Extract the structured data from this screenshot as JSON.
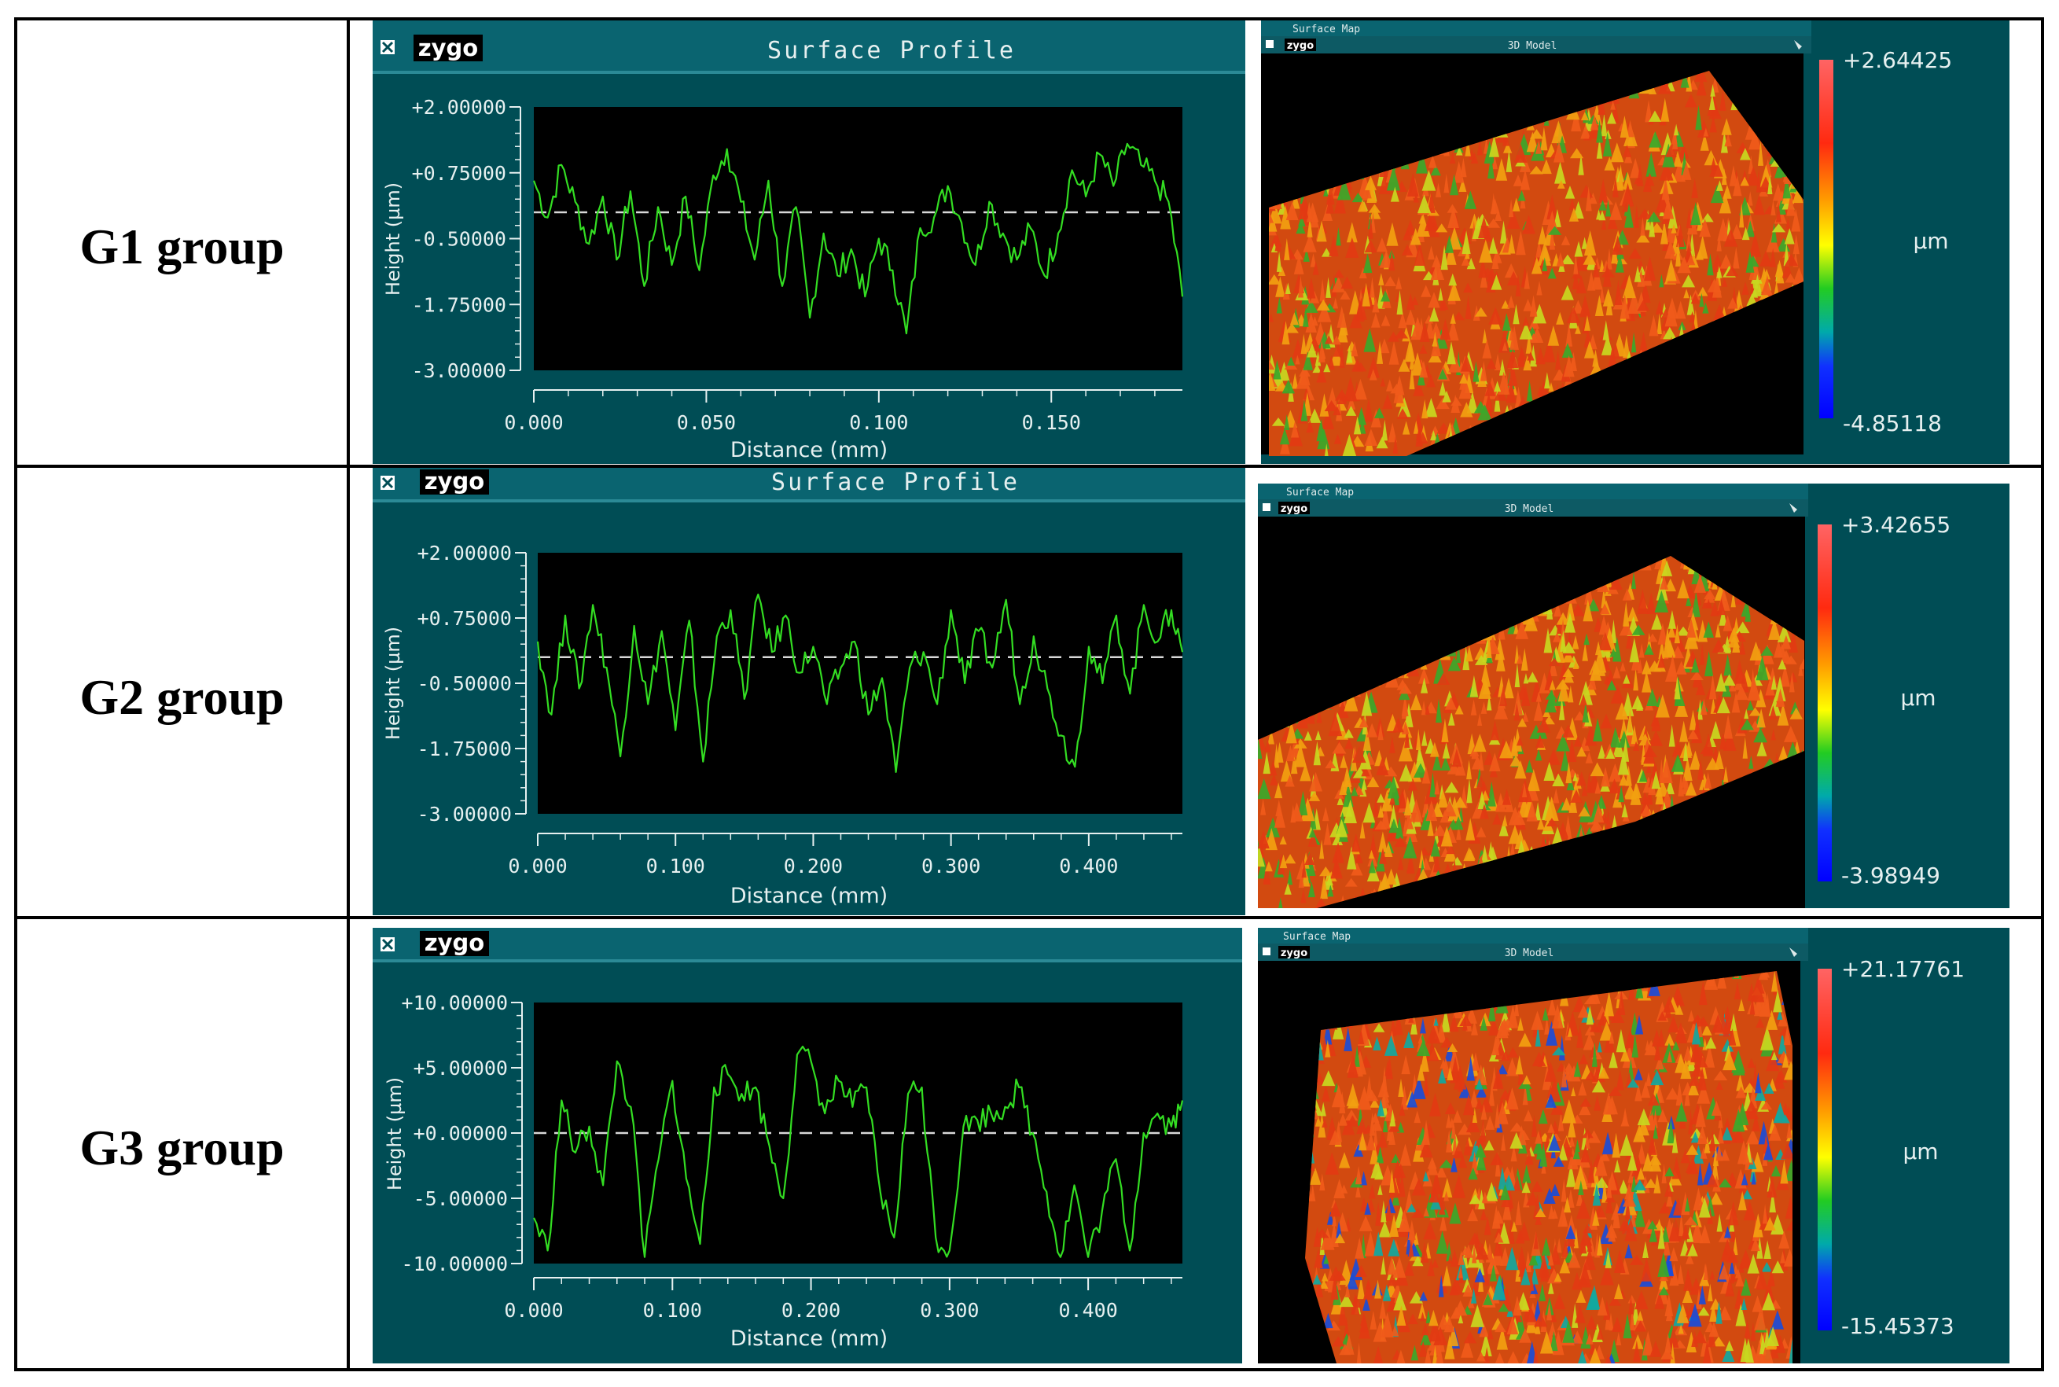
{
  "rows": [
    {
      "group_label": "G1 group",
      "profile": {
        "logo": "zygo",
        "title": "Surface Profile",
        "close_icon": "close-box-icon"
      },
      "map": {
        "window_title": "Surface Map",
        "logo": "zygo",
        "subtitle": "3D Model",
        "colorbar_max": "+2.64425",
        "colorbar_unit": "µm",
        "colorbar_min": "-4.85118"
      }
    },
    {
      "group_label": "G2 group",
      "profile": {
        "logo": "zygo",
        "title": "Surface Profile",
        "close_icon": "close-box-icon"
      },
      "map": {
        "window_title": "Surface Map",
        "logo": "zygo",
        "subtitle": "3D Model",
        "colorbar_max": "+3.42655",
        "colorbar_unit": "µm",
        "colorbar_min": "-3.98949"
      }
    },
    {
      "group_label": "G3 group",
      "profile": {
        "logo": "zygo",
        "title": "",
        "close_icon": "close-box-icon"
      },
      "map": {
        "window_title": "Surface Map",
        "logo": "zygo",
        "subtitle": "3D Model",
        "colorbar_max": "+21.17761",
        "colorbar_unit": "µm",
        "colorbar_min": "-15.45373"
      }
    }
  ],
  "colors": {
    "panel_bg": "#004d55",
    "title_bar": "#0a6470",
    "plot_bg": "#000000",
    "trace": "#33dd22",
    "axis_text": "#e6f0f0"
  },
  "chart_data": [
    {
      "type": "line",
      "title": "Surface Profile",
      "xlabel": "Distance (mm)",
      "ylabel": "Height (µm)",
      "xlim": [
        0,
        0.188
      ],
      "ylim": [
        -3.0,
        2.0
      ],
      "xticks": [
        0.0,
        0.05,
        0.1,
        0.15
      ],
      "xtick_labels": [
        "0.000",
        "0.050",
        "0.100",
        "0.150"
      ],
      "yticks": [
        2.0,
        0.75,
        -0.5,
        -1.75,
        -3.0
      ],
      "ytick_labels": [
        "+2.00000",
        "+0.75000",
        "-0.50000",
        "-1.75000",
        "-3.00000"
      ],
      "reference_line": 0,
      "series": [
        {
          "x": [
            0.0,
            0.004,
            0.008,
            0.012,
            0.016,
            0.02,
            0.024,
            0.028,
            0.032,
            0.036,
            0.04,
            0.044,
            0.048,
            0.052,
            0.056,
            0.06,
            0.064,
            0.068,
            0.072,
            0.076,
            0.08,
            0.084,
            0.088,
            0.092,
            0.096,
            0.1,
            0.104,
            0.108,
            0.112,
            0.116,
            0.12,
            0.124,
            0.128,
            0.132,
            0.136,
            0.14,
            0.144,
            0.148,
            0.152,
            0.156,
            0.16,
            0.164,
            0.168,
            0.172,
            0.176,
            0.18,
            0.184,
            0.188
          ],
          "y": [
            0.6,
            -0.1,
            0.9,
            0.2,
            -0.6,
            0.3,
            -0.9,
            0.4,
            -1.4,
            0.1,
            -1.0,
            0.3,
            -1.1,
            0.7,
            1.2,
            0.2,
            -0.9,
            0.6,
            -1.4,
            0.1,
            -2.0,
            -0.4,
            -1.2,
            -0.7,
            -1.6,
            -0.5,
            -1.1,
            -2.3,
            -0.3,
            -0.1,
            0.5,
            -0.2,
            -1.0,
            0.2,
            -0.4,
            -0.9,
            -0.3,
            -1.2,
            -0.4,
            0.8,
            0.3,
            1.1,
            0.5,
            1.3,
            0.9,
            0.6,
            0.2,
            -1.6
          ]
        }
      ]
    },
    {
      "type": "line",
      "title": "Surface Profile",
      "xlabel": "Distance (mm)",
      "ylabel": "Height (µm)",
      "xlim": [
        0,
        0.468
      ],
      "ylim": [
        -3.0,
        2.0
      ],
      "xticks": [
        0.0,
        0.1,
        0.2,
        0.3,
        0.4
      ],
      "xtick_labels": [
        "0.000",
        "0.100",
        "0.200",
        "0.300",
        "0.400"
      ],
      "yticks": [
        2.0,
        0.75,
        -0.5,
        -1.75,
        -3.0
      ],
      "ytick_labels": [
        "+2.00000",
        "+0.75000",
        "-0.50000",
        "-1.75000",
        "-3.00000"
      ],
      "reference_line": 0,
      "series": [
        {
          "x": [
            0.0,
            0.01,
            0.02,
            0.03,
            0.04,
            0.05,
            0.06,
            0.07,
            0.08,
            0.09,
            0.1,
            0.11,
            0.12,
            0.13,
            0.14,
            0.15,
            0.16,
            0.17,
            0.18,
            0.19,
            0.2,
            0.21,
            0.22,
            0.23,
            0.24,
            0.25,
            0.26,
            0.27,
            0.28,
            0.29,
            0.3,
            0.31,
            0.32,
            0.33,
            0.34,
            0.35,
            0.36,
            0.37,
            0.38,
            0.39,
            0.4,
            0.41,
            0.42,
            0.43,
            0.44,
            0.45,
            0.46,
            0.468
          ],
          "y": [
            0.3,
            -1.1,
            0.8,
            -0.6,
            1.0,
            -0.2,
            -1.9,
            0.6,
            -0.9,
            0.5,
            -1.4,
            0.7,
            -2.0,
            0.4,
            0.9,
            -0.8,
            1.2,
            0.1,
            0.8,
            -0.3,
            0.2,
            -0.9,
            -0.2,
            0.3,
            -1.1,
            -0.4,
            -2.2,
            -0.2,
            0.1,
            -0.9,
            0.9,
            -0.5,
            0.5,
            -0.2,
            1.1,
            -0.9,
            0.4,
            -0.6,
            -1.5,
            -2.1,
            0.2,
            -0.5,
            0.8,
            -0.7,
            1.0,
            0.3,
            0.9,
            0.1
          ]
        }
      ]
    },
    {
      "type": "line",
      "title": "",
      "xlabel": "Distance (mm)",
      "ylabel": "Height (µm)",
      "xlim": [
        0,
        0.468
      ],
      "ylim": [
        -10.0,
        10.0
      ],
      "xticks": [
        0.0,
        0.1,
        0.2,
        0.3,
        0.4
      ],
      "xtick_labels": [
        "0.000",
        "0.100",
        "0.200",
        "0.300",
        "0.400"
      ],
      "yticks": [
        10.0,
        5.0,
        0.0,
        -5.0,
        -10.0
      ],
      "ytick_labels": [
        "+10.00000",
        "+5.00000",
        "+0.00000",
        "-5.00000",
        "-10.00000"
      ],
      "reference_line": 0,
      "series": [
        {
          "x": [
            0.0,
            0.01,
            0.02,
            0.03,
            0.04,
            0.05,
            0.06,
            0.07,
            0.08,
            0.09,
            0.1,
            0.11,
            0.12,
            0.13,
            0.14,
            0.15,
            0.16,
            0.17,
            0.18,
            0.19,
            0.2,
            0.21,
            0.22,
            0.23,
            0.24,
            0.25,
            0.26,
            0.27,
            0.28,
            0.29,
            0.3,
            0.31,
            0.32,
            0.33,
            0.34,
            0.35,
            0.36,
            0.37,
            0.38,
            0.39,
            0.4,
            0.41,
            0.42,
            0.43,
            0.44,
            0.45,
            0.46,
            0.468
          ],
          "y": [
            -6.5,
            -9.0,
            2.5,
            -1.5,
            0.5,
            -4.0,
            5.5,
            2.0,
            -9.5,
            -2.0,
            4.0,
            -3.5,
            -8.5,
            3.5,
            4.5,
            3.0,
            3.5,
            -1.0,
            -5.0,
            6.0,
            5.5,
            1.5,
            4.0,
            2.0,
            3.5,
            -4.5,
            -8.0,
            3.0,
            3.5,
            -8.0,
            -9.0,
            0.5,
            1.0,
            1.5,
            2.0,
            3.5,
            0.0,
            -4.5,
            -9.5,
            -4.0,
            -9.5,
            -6.0,
            -2.0,
            -9.0,
            0.0,
            1.5,
            0.5,
            2.5
          ]
        }
      ]
    }
  ]
}
